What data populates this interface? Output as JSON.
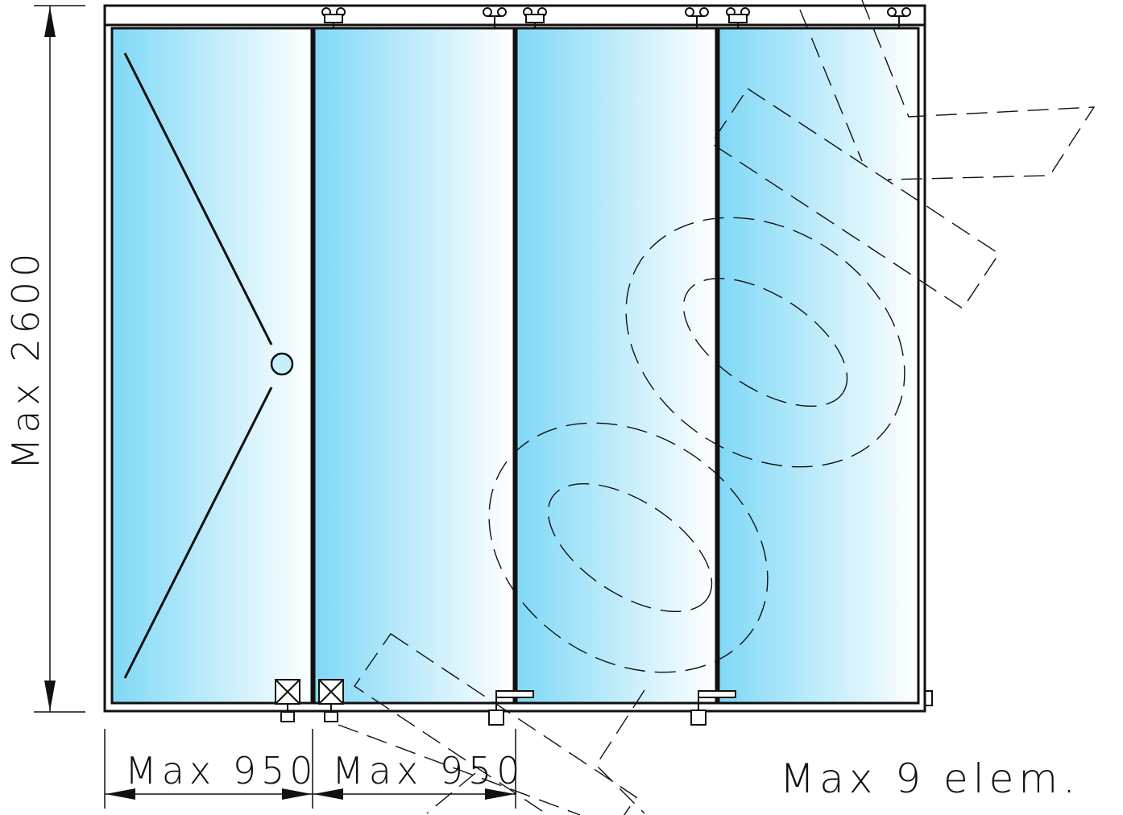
{
  "labels": {
    "height": "Max  2600",
    "width_1": "Max  950",
    "width_2": "Max  950",
    "elements": "Max  9  elem."
  },
  "panel_count": 4,
  "colors": {
    "glass_dark": "#7fd8f6",
    "glass_light": "#ffffff",
    "line": "#111111"
  }
}
